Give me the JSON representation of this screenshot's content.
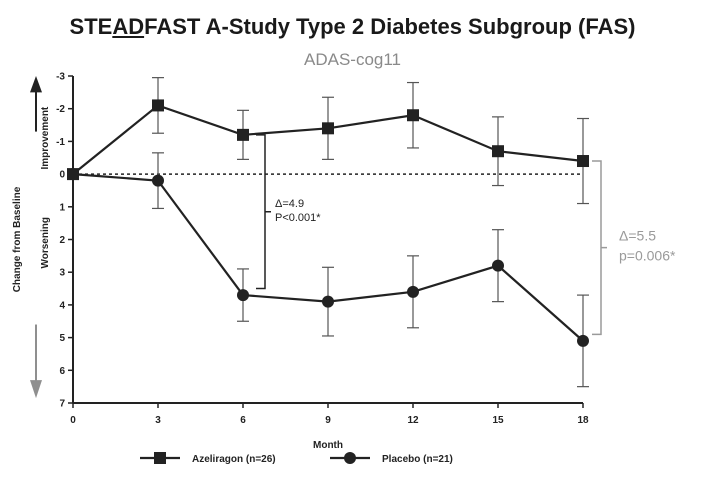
{
  "title": {
    "prefix": "STE",
    "underlined": "AD",
    "suffix": "FAST A-Study Type 2 Diabetes Subgroup (FAS)"
  },
  "subtitle": "ADAS-cog11",
  "colors": {
    "series": "#222222",
    "text": "#1a1a1a",
    "annotation_gray": "#9a9a9a",
    "arrow": "#8f8f8f"
  },
  "chart_data": {
    "type": "line",
    "title": "STEADFAST A-Study Type 2 Diabetes Subgroup (FAS)",
    "subtitle": "ADAS-cog11",
    "xlabel": "Month",
    "ylabel": "Change from Baseline",
    "y_direction_labels": {
      "up": "Improvement",
      "down": "Worsening"
    },
    "x": [
      0,
      3,
      6,
      9,
      12,
      15,
      18
    ],
    "x_ticks": [
      "0",
      "3",
      "6",
      "9",
      "12",
      "15",
      "18"
    ],
    "y_ticks": [
      -3,
      -2,
      -1,
      0,
      1,
      2,
      3,
      4,
      5,
      6,
      7
    ],
    "y_tick_labels": [
      "-3",
      "-2",
      "-1",
      "0",
      "1",
      "2",
      "3",
      "4",
      "5",
      "6",
      "7"
    ],
    "xlim": [
      0,
      18
    ],
    "ylim": [
      -3,
      7
    ],
    "y_inverted": true,
    "reference_line": 0,
    "series": [
      {
        "name": "Azeliragon (n=26)",
        "marker": "square",
        "values": [
          0,
          -2.1,
          -1.2,
          -1.4,
          -1.8,
          -0.7,
          -0.4
        ],
        "error": [
          0,
          0.85,
          0.75,
          0.95,
          1.0,
          1.05,
          1.3
        ]
      },
      {
        "name": "Placebo (n=21)",
        "marker": "circle",
        "values": [
          0,
          0.2,
          3.7,
          3.9,
          3.6,
          2.8,
          5.1
        ],
        "error": [
          0,
          0.85,
          0.8,
          1.05,
          1.1,
          1.1,
          1.4
        ]
      }
    ],
    "annotations": [
      {
        "lines": [
          "Δ=4.9",
          "P<0.001*"
        ],
        "at_month": 6,
        "span": [
          -1.2,
          3.5
        ],
        "color": "dark"
      },
      {
        "lines": [
          "Δ=5.5",
          "p=0.006*"
        ],
        "at_month": 18,
        "span": [
          -0.4,
          4.9
        ],
        "color": "gray"
      }
    ],
    "legend": {
      "placement": "bottom-center"
    }
  }
}
